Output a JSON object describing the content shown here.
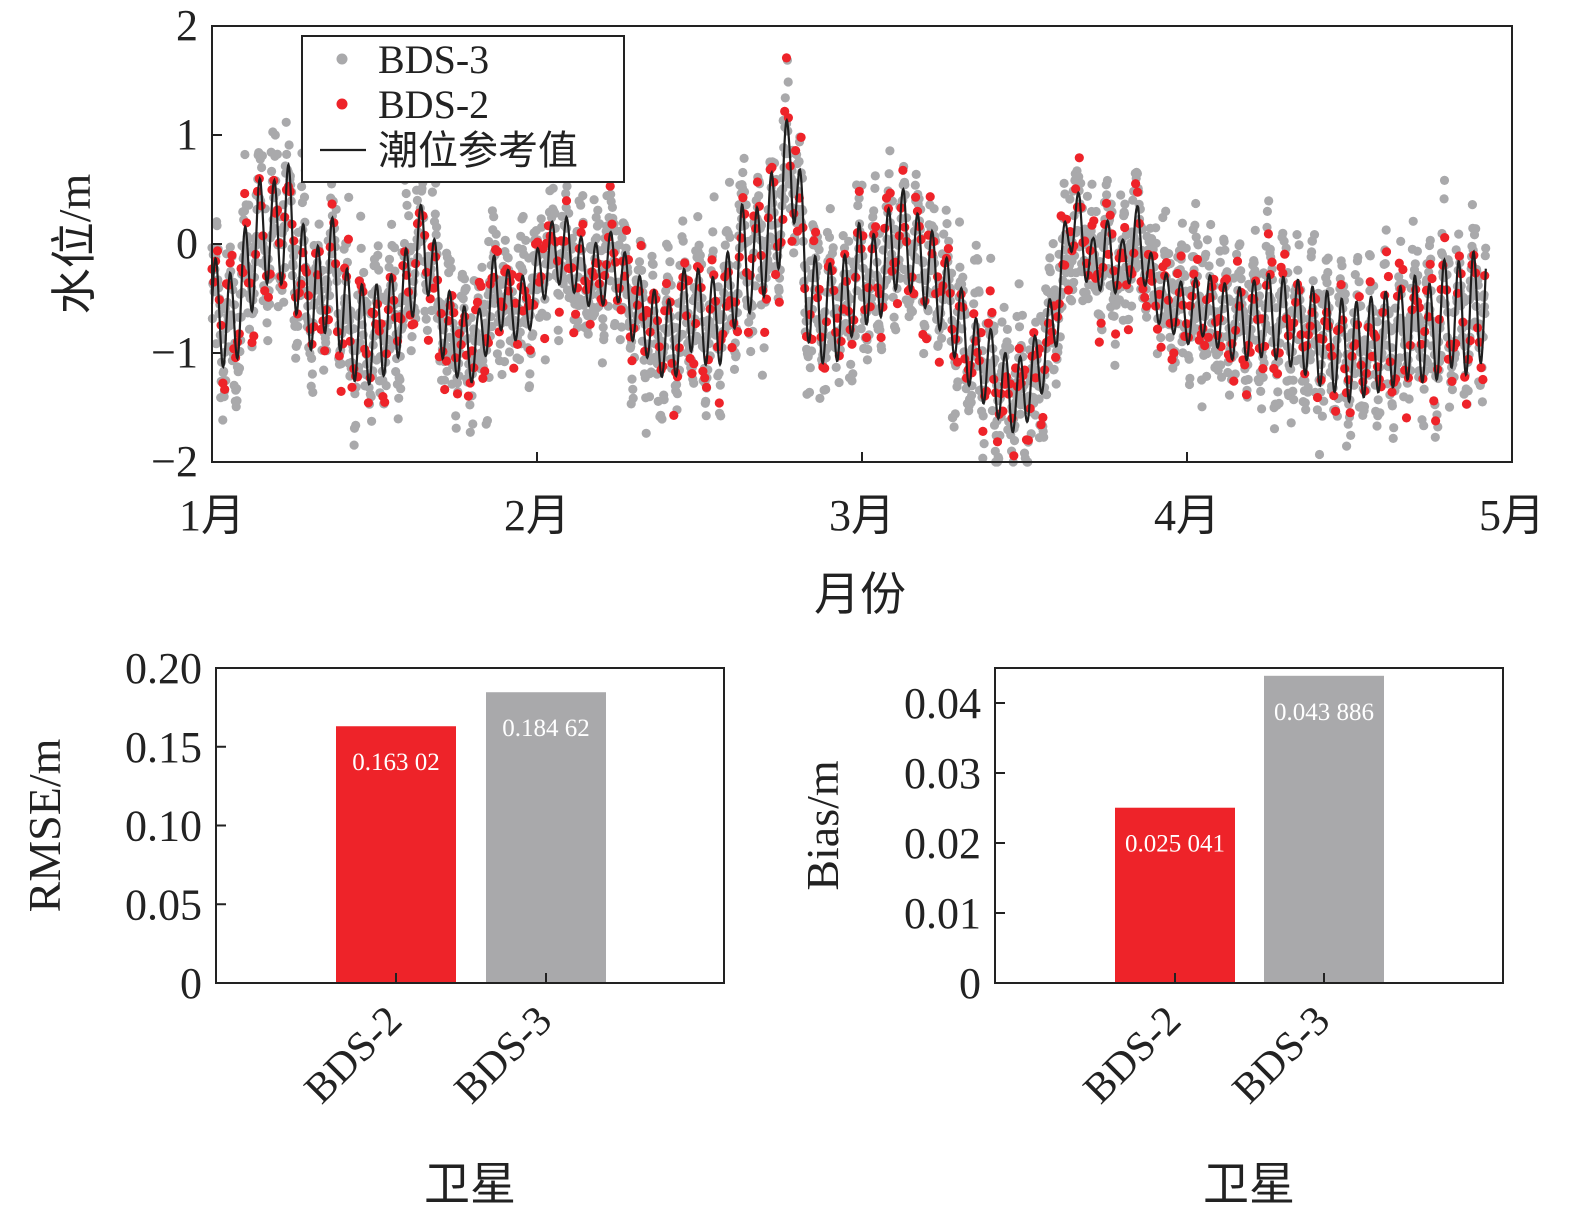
{
  "colors": {
    "bds3": "#a9a9ab",
    "bds2": "#ee2329",
    "reference": "#1e1e1e",
    "axis": "#222222"
  },
  "chart_data": [
    {
      "id": "timeseries",
      "type": "scatter",
      "xlabel": "月份",
      "ylabel": "水位/m",
      "x_ticks": [
        "1月",
        "2月",
        "3月",
        "4月",
        "5月"
      ],
      "xlim": [
        1,
        4.92
      ],
      "ylim": [
        -2,
        2
      ],
      "y_ticks": [
        2,
        1,
        0,
        -1,
        -2
      ],
      "y_tick_labels": [
        "2",
        "1",
        "0",
        "−1",
        "−2"
      ],
      "grid": false,
      "legend_position": "top-left",
      "legend": [
        "BDS-3",
        "BDS-2",
        "潮位参考值"
      ],
      "reference_series": {
        "name": "潮位参考值",
        "x": [
          1.0,
          1.06,
          1.1,
          1.13,
          1.16,
          1.19,
          1.23,
          1.28,
          1.33,
          1.36,
          1.38,
          1.42,
          1.47,
          1.52,
          1.57,
          1.61,
          1.65,
          1.68,
          1.71,
          1.76,
          1.82,
          1.87,
          1.91,
          1.96,
          2.0,
          2.04,
          2.09,
          2.14,
          2.19,
          2.24,
          2.29,
          2.34,
          2.38,
          2.42,
          2.46,
          2.5,
          2.55,
          2.59,
          2.63,
          2.67,
          2.71,
          2.75,
          2.78,
          2.8,
          2.84,
          2.89,
          2.94,
          2.99,
          3.04,
          3.09,
          3.13,
          3.16,
          3.2,
          3.25,
          3.3,
          3.35,
          3.4,
          3.44,
          3.48,
          3.52,
          3.56,
          3.6,
          3.64,
          3.67,
          3.71,
          3.75,
          3.8,
          3.85,
          3.9,
          3.95,
          4.0,
          4.05,
          4.1,
          4.15,
          4.2,
          4.25,
          4.3,
          4.35,
          4.4,
          4.45,
          4.5,
          4.55,
          4.6,
          4.65,
          4.7,
          4.75,
          4.8,
          4.85,
          4.9
        ],
        "y": [
          -0.55,
          -0.75,
          -0.35,
          -0.05,
          0.2,
          0.05,
          0.25,
          -0.35,
          -0.55,
          -0.15,
          -0.35,
          -0.75,
          -0.85,
          -0.8,
          -0.65,
          -0.35,
          0.05,
          -0.25,
          -0.7,
          -0.9,
          -0.95,
          -0.4,
          -0.55,
          -0.6,
          -0.35,
          -0.1,
          -0.05,
          -0.25,
          -0.3,
          -0.15,
          -0.55,
          -0.7,
          -0.85,
          -0.9,
          -0.55,
          -0.65,
          -0.75,
          -0.5,
          -0.1,
          -0.2,
          0.1,
          0.3,
          0.9,
          0.45,
          -0.55,
          -0.65,
          -0.6,
          -0.25,
          -0.35,
          -0.05,
          0.1,
          -0.1,
          -0.2,
          -0.45,
          -0.75,
          -1.05,
          -1.15,
          -1.35,
          -1.4,
          -1.25,
          -1.0,
          -0.6,
          0.25,
          0.15,
          -0.25,
          -0.05,
          -0.25,
          0.1,
          -0.45,
          -0.55,
          -0.65,
          -0.55,
          -0.65,
          -0.75,
          -0.7,
          -0.65,
          -0.7,
          -0.75,
          -0.85,
          -0.9,
          -1.0,
          -0.95,
          -0.9,
          -0.85,
          -0.75,
          -0.85,
          -0.6,
          -0.7,
          -0.55
        ],
        "period": 0.045,
        "amplitude": [
          0.45,
          0.55,
          0.45,
          0.35,
          0.3,
          0.3,
          0.4,
          0.5,
          0.45,
          0.4,
          0.35,
          0.3,
          0.25,
          0.35,
          0.45,
          0.45,
          0.55
        ]
      },
      "series": [
        {
          "name": "BDS-3",
          "color_key": "bds3",
          "spread": 0.3,
          "density": 2.4
        },
        {
          "name": "BDS-2",
          "color_key": "bds2",
          "spread": 0.22,
          "density": 0.55
        }
      ]
    },
    {
      "id": "rmse",
      "type": "bar",
      "categories": [
        "BDS-2",
        "BDS-3"
      ],
      "values": [
        0.16302,
        0.18462
      ],
      "value_labels": [
        "0.163 02",
        "0.184 62"
      ],
      "colors": [
        "#ee2329",
        "#a9a9ab"
      ],
      "ylabel": "RMSE/m",
      "xlabel": "卫星",
      "ylim": [
        0,
        0.2
      ],
      "y_ticks": [
        0,
        0.05,
        0.1,
        0.15,
        0.2
      ],
      "y_tick_labels": [
        "0",
        "0.05",
        "0.10",
        "0.15",
        "0.20"
      ]
    },
    {
      "id": "bias",
      "type": "bar",
      "categories": [
        "BDS-2",
        "BDS-3"
      ],
      "values": [
        0.025041,
        0.043886
      ],
      "value_labels": [
        "0.025 041",
        "0.043 886"
      ],
      "colors": [
        "#ee2329",
        "#a9a9ab"
      ],
      "ylabel": "Bias/m",
      "xlabel": "卫星",
      "ylim": [
        0,
        0.045
      ],
      "y_ticks": [
        0,
        0.01,
        0.02,
        0.03,
        0.04
      ],
      "y_tick_labels": [
        "0",
        "0.01",
        "0.02",
        "0.03",
        "0.04"
      ]
    }
  ]
}
